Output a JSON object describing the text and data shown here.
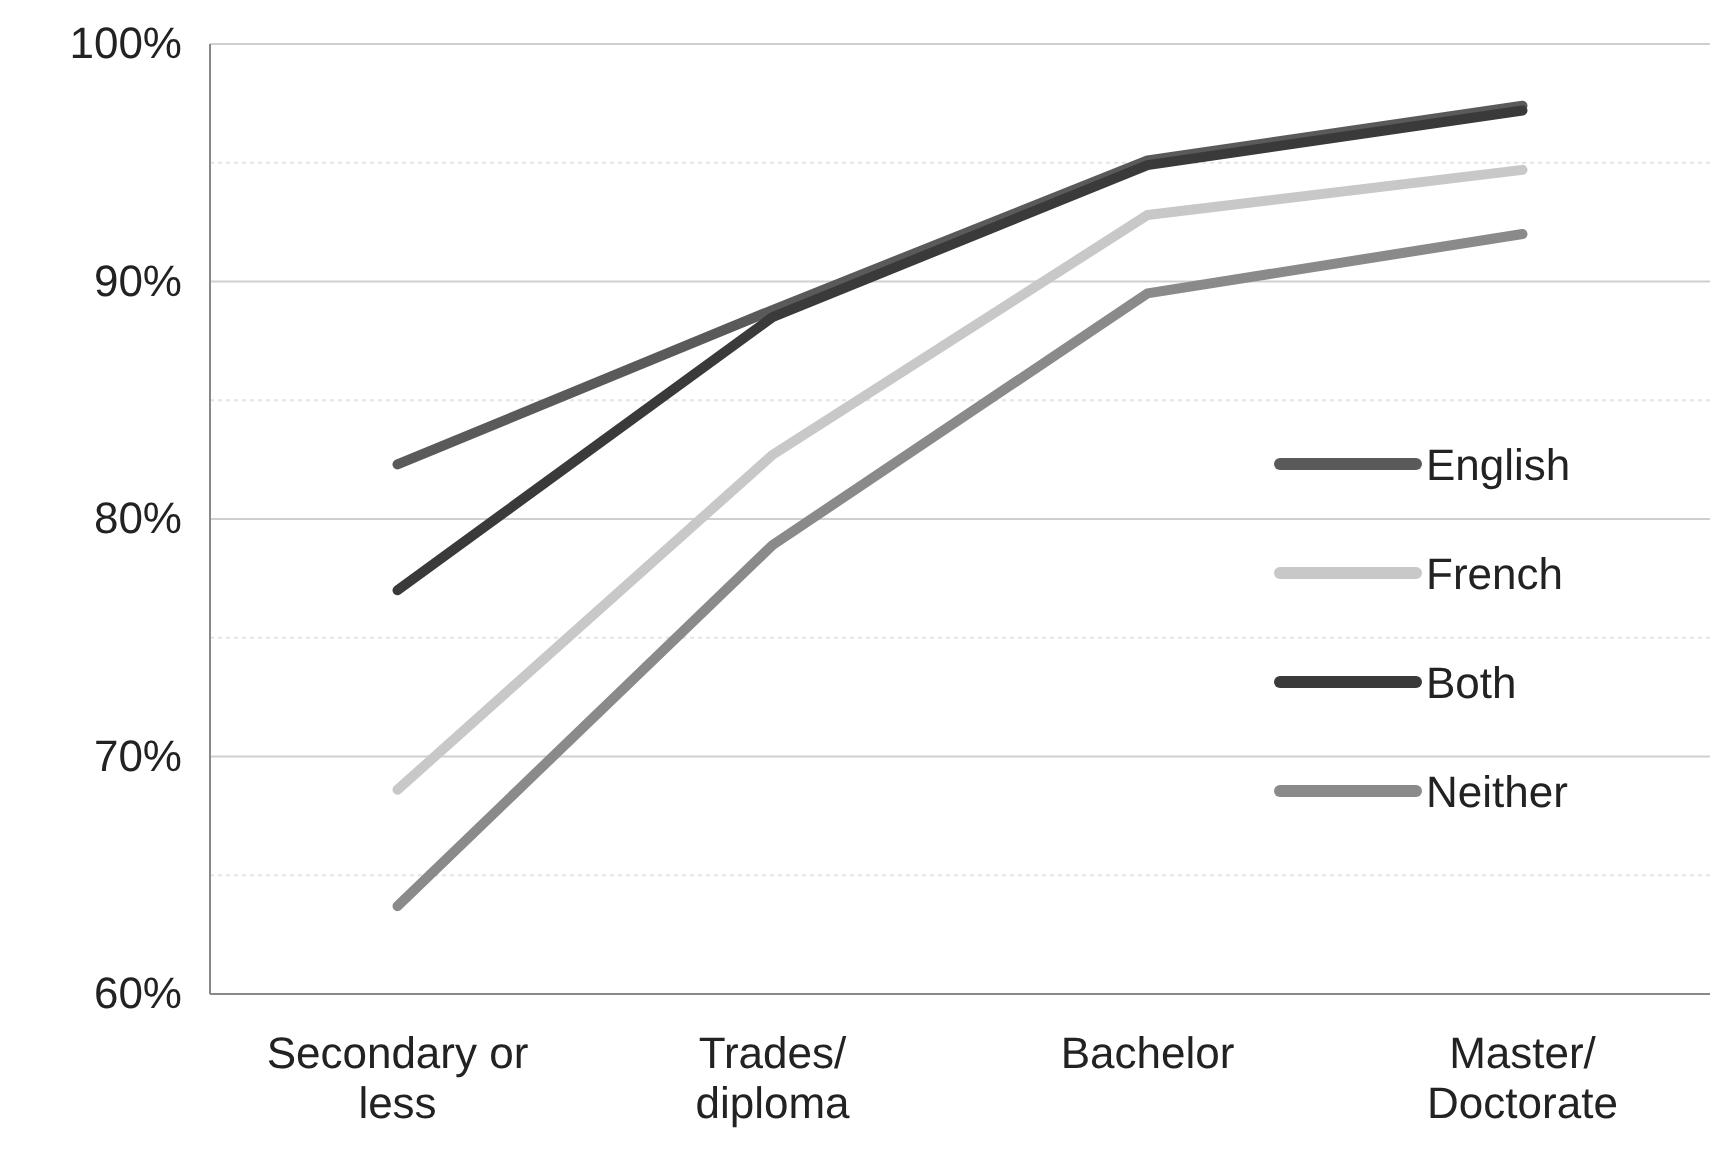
{
  "chart_data": {
    "type": "line",
    "categories": [
      "Secondary or less",
      "Trades/ diploma",
      "Bachelor",
      "Master/ Doctorate"
    ],
    "series": [
      {
        "name": "English",
        "color": "#5a5a5a",
        "values": [
          82.3,
          88.8,
          95.1,
          97.4
        ]
      },
      {
        "name": "French",
        "color": "#c8c8c8",
        "values": [
          68.6,
          82.7,
          92.8,
          94.7
        ]
      },
      {
        "name": "Both",
        "color": "#3a3a3a",
        "values": [
          77.0,
          88.5,
          94.9,
          97.2
        ]
      },
      {
        "name": "Neither",
        "color": "#8a8a8a",
        "values": [
          63.7,
          78.9,
          89.5,
          92.0
        ]
      }
    ],
    "ylim": [
      60,
      100
    ],
    "yticks": [
      {
        "value": 60,
        "label": "60%"
      },
      {
        "value": 65,
        "label": null
      },
      {
        "value": 70,
        "label": "70%"
      },
      {
        "value": 75,
        "label": null
      },
      {
        "value": 80,
        "label": "80%"
      },
      {
        "value": 85,
        "label": null
      },
      {
        "value": 90,
        "label": "90%"
      },
      {
        "value": 95,
        "label": null
      },
      {
        "value": 100,
        "label": "100%"
      }
    ],
    "grid": "y",
    "legend": "right",
    "marker": "none",
    "line_style": "solid"
  }
}
